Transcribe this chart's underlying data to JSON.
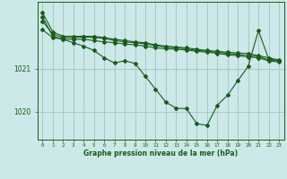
{
  "xlabel": "Graphe pression niveau de la mer (hPa)",
  "bg_color": "#cce8e8",
  "grid_color": "#aac8c8",
  "line_color": "#1a5c1a",
  "hours": [
    0,
    1,
    2,
    3,
    4,
    5,
    6,
    7,
    8,
    9,
    10,
    11,
    12,
    13,
    14,
    15,
    16,
    17,
    18,
    19,
    20,
    21,
    22,
    23
  ],
  "series1": [
    1022.3,
    1021.85,
    1021.75,
    1021.75,
    1021.75,
    1021.75,
    1021.72,
    1021.68,
    1021.65,
    1021.62,
    1021.6,
    1021.55,
    1021.52,
    1021.5,
    1021.48,
    1021.45,
    1021.42,
    1021.4,
    1021.38,
    1021.36,
    1021.35,
    1021.3,
    1021.25,
    1021.2
  ],
  "series2": [
    1022.1,
    1021.8,
    1021.72,
    1021.72,
    1021.73,
    1021.72,
    1021.7,
    1021.65,
    1021.62,
    1021.6,
    1021.57,
    1021.53,
    1021.5,
    1021.48,
    1021.46,
    1021.42,
    1021.4,
    1021.38,
    1021.35,
    1021.33,
    1021.3,
    1021.28,
    1021.2,
    1021.18
  ],
  "series3": [
    1021.9,
    1021.72,
    1021.68,
    1021.68,
    1021.68,
    1021.65,
    1021.62,
    1021.6,
    1021.57,
    1021.55,
    1021.52,
    1021.48,
    1021.46,
    1021.45,
    1021.43,
    1021.4,
    1021.38,
    1021.35,
    1021.32,
    1021.3,
    1021.27,
    1021.25,
    1021.18,
    1021.15
  ],
  "series4": [
    1022.2,
    1021.75,
    1021.68,
    1021.6,
    1021.52,
    1021.42,
    1021.25,
    1021.13,
    1021.18,
    1021.12,
    1020.82,
    1020.52,
    1020.22,
    1020.08,
    1020.07,
    1019.72,
    1019.68,
    1020.15,
    1020.38,
    1020.72,
    1021.05,
    1021.88,
    1021.22,
    1021.18
  ],
  "yticks": [
    1020,
    1021
  ],
  "ylim": [
    1019.35,
    1022.55
  ],
  "xlim": [
    -0.5,
    23.5
  ]
}
